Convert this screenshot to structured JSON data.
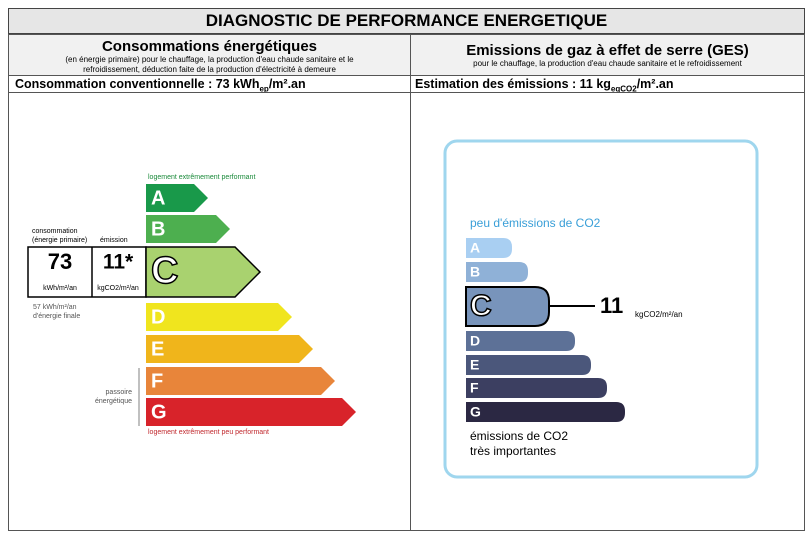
{
  "title": "DIAGNOSTIC DE PERFORMANCE ENERGETIQUE",
  "energy": {
    "heading": "Consommations énergétiques",
    "note": "(en énergie primaire) pour le chauffage, la production d'eau chaude sanitaire et le refroidissement, déduction faite de la production d'électricité à demeure",
    "summary": {
      "text": "Consommation conventionnelle : 73 kWh",
      "sub": "ep",
      "tail": "/m².an"
    },
    "top_label": "logement extrêmement performant",
    "bottom_label": "logement extrêmement peu performant",
    "classes": [
      "A",
      "B",
      "C",
      "D",
      "E",
      "F",
      "G"
    ],
    "rating": "C",
    "consumption_label": [
      "consommation",
      "(énergie primaire)"
    ],
    "emission_label": "émission",
    "consumption_value": "73",
    "consumption_unit": "kWh/m²/an",
    "emission_value": "11*",
    "emission_unit": "kgCO2/m²/an",
    "final_note": [
      "57 kWh/m²/an",
      "d'énergie finale"
    ],
    "side_label": [
      "passoire",
      "énergétique"
    ]
  },
  "ges": {
    "heading": "Emissions de gaz à effet de serre (GES)",
    "note": "pour le chauffage, la production d'eau chaude sanitaire et le refroidissement",
    "summary": {
      "text": "Estimation des émissions : 11 kg",
      "sub": "eqCO2",
      "tail": "/m².an"
    },
    "top_label": "peu d'émissions de CO2",
    "bottom_label": [
      "émissions de CO2",
      "très importantes"
    ],
    "classes": [
      "A",
      "B",
      "C",
      "D",
      "E",
      "F",
      "G"
    ],
    "rating": "C",
    "value": "11",
    "unit": "kgCO2/m²/an"
  }
}
